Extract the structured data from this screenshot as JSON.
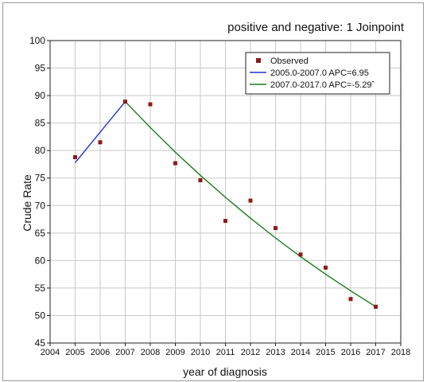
{
  "chart_data": {
    "type": "scatter",
    "title": "positive  and negative: 1 Joinpoint",
    "xlabel": "year of diagnosis",
    "ylabel": "Crude Rate",
    "xlim": [
      2004,
      2018
    ],
    "ylim": [
      45,
      100
    ],
    "xticks": [
      2004,
      2005,
      2006,
      2007,
      2008,
      2009,
      2010,
      2011,
      2012,
      2013,
      2014,
      2015,
      2016,
      2017,
      2018
    ],
    "yticks": [
      45,
      50,
      55,
      60,
      65,
      70,
      75,
      80,
      85,
      90,
      95,
      100
    ],
    "grid": true,
    "legend_position": "top-right",
    "series": [
      {
        "name": "Observed",
        "kind": "points",
        "color": "#8b1a1a",
        "x": [
          2005,
          2006,
          2007,
          2008,
          2009,
          2010,
          2011,
          2012,
          2013,
          2014,
          2015,
          2016,
          2017
        ],
        "y": [
          78.8,
          81.5,
          88.9,
          88.4,
          77.7,
          74.6,
          67.2,
          70.9,
          65.9,
          61.1,
          58.7,
          53.0,
          51.6
        ]
      },
      {
        "name": "2005.0-2007.0 APC=6.95",
        "kind": "line",
        "color": "#2233cc",
        "x": [
          2005,
          2007
        ],
        "y": [
          77.8,
          88.9
        ]
      },
      {
        "name": "2007.0-2017.0 APC=-5.29ˆ",
        "kind": "line",
        "color": "#1a7a1a",
        "x": [
          2007,
          2008,
          2009,
          2010,
          2011,
          2012,
          2013,
          2014,
          2015,
          2016,
          2017
        ],
        "y": [
          88.9,
          84.2,
          79.7,
          75.5,
          71.5,
          67.7,
          64.1,
          60.7,
          57.5,
          54.5,
          51.6
        ]
      }
    ]
  }
}
